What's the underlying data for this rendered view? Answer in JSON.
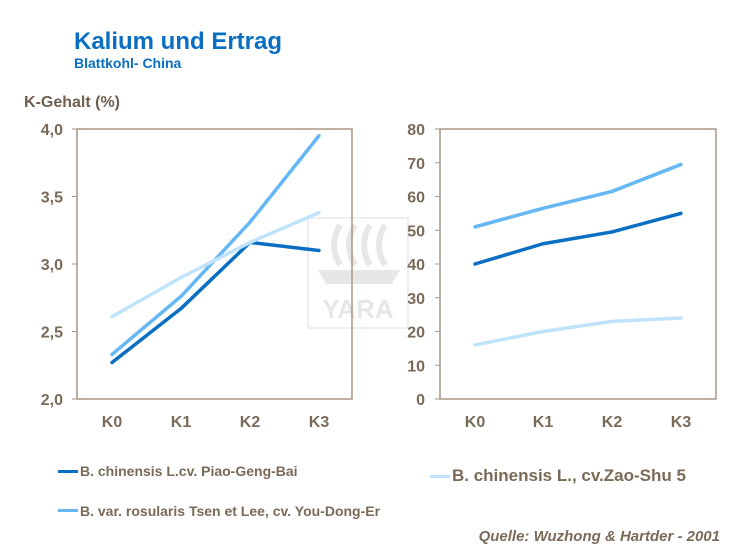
{
  "title": "Kalium und Ertrag",
  "subtitle": "Blattkohl- China",
  "source": "Quelle: Wuzhong & Hartder - 2001",
  "logo": {
    "text": "YARA"
  },
  "colors": {
    "text": "#7a6a58",
    "title": "#0a6fc2",
    "axis": "#a89584"
  },
  "legend": [
    {
      "label": "B. chinensis L.cv. Piao-Geng-Bai",
      "color": "#0a6fc2"
    },
    {
      "label": "B. var. rosularis Tsen et Lee, cv. You-Dong-Er",
      "color": "#66b8f5"
    },
    {
      "label": "B. chinensis L., cv.Zao-Shu 5",
      "color": "#bfe3fb"
    }
  ],
  "chart_data": [
    {
      "type": "line",
      "ylabel": "K-Gehalt (%)",
      "categories": [
        "K0",
        "K1",
        "K2",
        "K3"
      ],
      "ylim": [
        2.0,
        4.0
      ],
      "yticks": [
        "2,0",
        "2,5",
        "3,0",
        "3,5",
        "4,0"
      ],
      "grid": false,
      "series": [
        {
          "name": "B. chinensis L.cv. Piao-Geng-Bai",
          "color": "#0a6fc2",
          "values": [
            2.27,
            2.67,
            3.16,
            3.1
          ]
        },
        {
          "name": "B. var. rosularis Tsen et Lee, cv. You-Dong-Er",
          "color": "#66b8f5",
          "values": [
            2.33,
            2.76,
            3.31,
            3.95
          ]
        },
        {
          "name": "B. chinensis L., cv.Zao-Shu 5",
          "color": "#bfe3fb",
          "values": [
            2.61,
            2.9,
            3.16,
            3.38
          ]
        }
      ]
    },
    {
      "type": "line",
      "categories": [
        "K0",
        "K1",
        "K2",
        "K3"
      ],
      "ylim": [
        0,
        80
      ],
      "yticks": [
        "0",
        "10",
        "20",
        "30",
        "40",
        "50",
        "60",
        "70",
        "80"
      ],
      "grid": false,
      "series": [
        {
          "name": "B. chinensis L.cv. Piao-Geng-Bai",
          "color": "#0a6fc2",
          "values": [
            40,
            46,
            49.5,
            55
          ]
        },
        {
          "name": "B. var. rosularis Tsen et Lee, cv. You-Dong-Er",
          "color": "#66b8f5",
          "values": [
            51,
            56.5,
            61.5,
            69.5
          ]
        },
        {
          "name": "B. chinensis L., cv.Zao-Shu 5",
          "color": "#bfe3fb",
          "values": [
            16,
            20,
            23,
            24
          ]
        }
      ]
    }
  ]
}
